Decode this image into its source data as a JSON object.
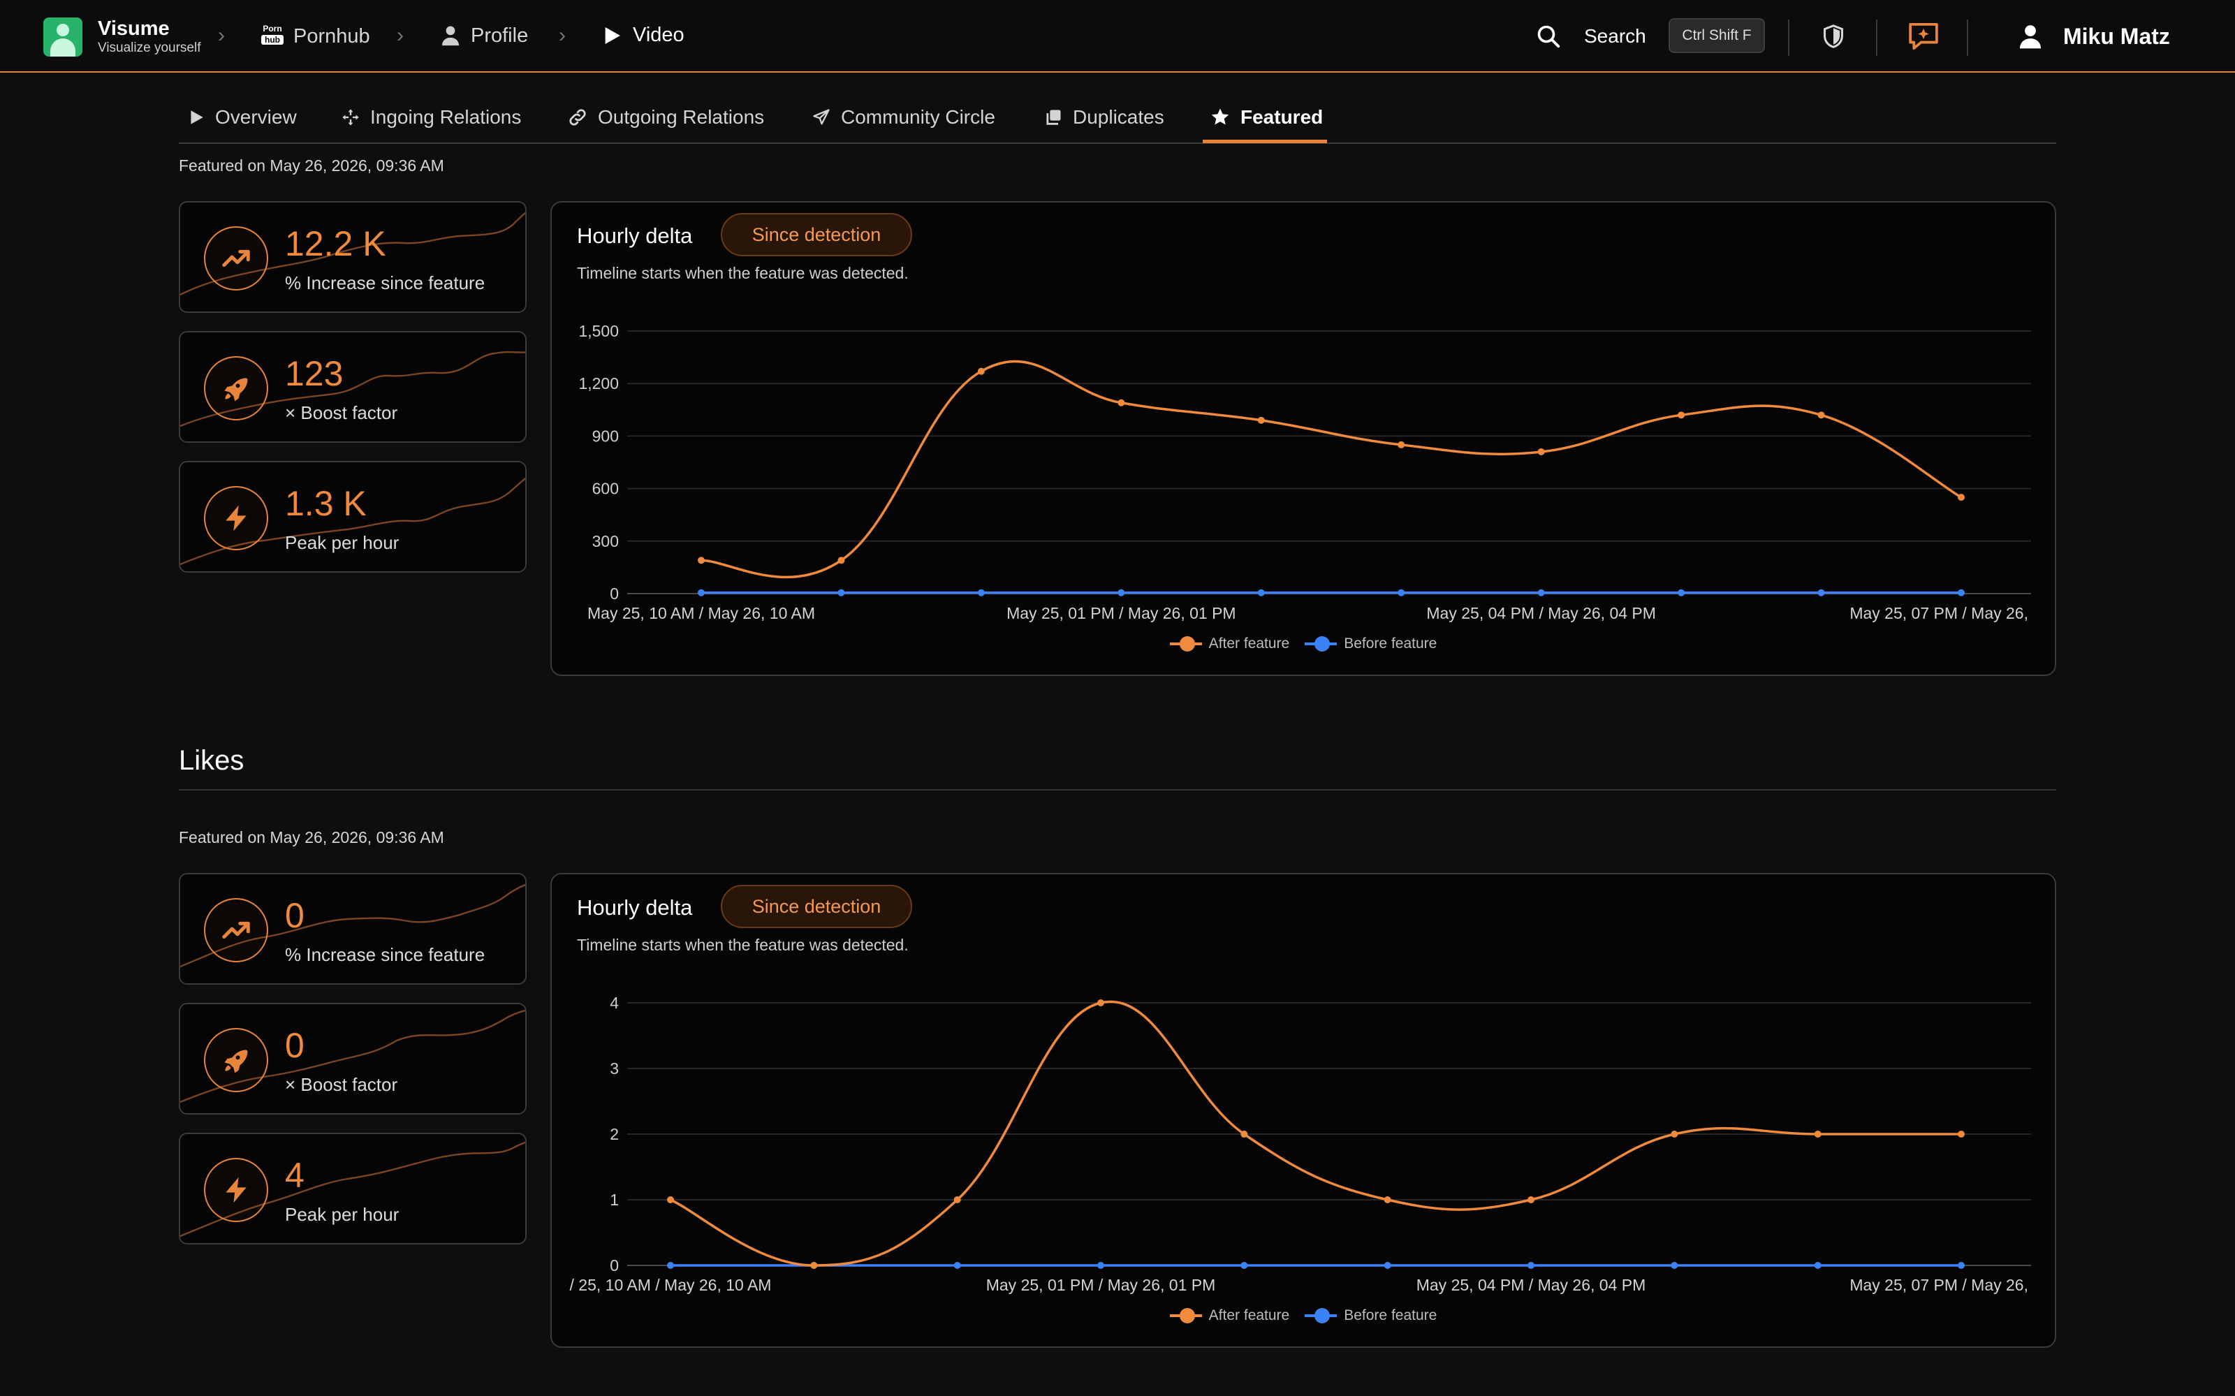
{
  "brand": {
    "name": "Visume",
    "tagline": "Visualize yourself"
  },
  "breadcrumb": [
    {
      "label": "Pornhub",
      "icon": "pornhub-logo-icon"
    },
    {
      "label": "Profile",
      "icon": "person-icon"
    },
    {
      "label": "Video",
      "icon": "play-icon"
    }
  ],
  "header": {
    "search_label": "Search",
    "shortcut": "Ctrl Shift F",
    "user_name": "Miku Matz"
  },
  "tabs": [
    {
      "label": "Overview",
      "icon": "play-icon"
    },
    {
      "label": "Ingoing Relations",
      "icon": "move-arrows-icon"
    },
    {
      "label": "Outgoing Relations",
      "icon": "link-icon"
    },
    {
      "label": "Community Circle",
      "icon": "send-icon"
    },
    {
      "label": "Duplicates",
      "icon": "copy-icon"
    },
    {
      "label": "Featured",
      "icon": "star-icon",
      "active": true
    }
  ],
  "sections": [
    {
      "title": "",
      "featured_on": "Featured on May 26, 2026, 09:36 AM",
      "stats": [
        {
          "value": "12.2 K",
          "label": "% Increase since feature",
          "icon": "trending-up-icon"
        },
        {
          "value": "123",
          "label": "× Boost factor",
          "icon": "rocket-icon"
        },
        {
          "value": "1.3 K",
          "label": "Peak per hour",
          "icon": "lightning-icon"
        }
      ],
      "chart_title": "Hourly delta",
      "chip": "Since detection",
      "subtitle": "Timeline starts when the feature was detected.",
      "legend": [
        "After feature",
        "Before feature"
      ]
    },
    {
      "title": "Likes",
      "featured_on": "Featured on May 26, 2026, 09:36 AM",
      "stats": [
        {
          "value": "0",
          "label": "% Increase since feature",
          "icon": "trending-up-icon"
        },
        {
          "value": "0",
          "label": "× Boost factor",
          "icon": "rocket-icon"
        },
        {
          "value": "4",
          "label": "Peak per hour",
          "icon": "lightning-icon"
        }
      ],
      "chart_title": "Hourly delta",
      "chip": "Since detection",
      "subtitle": "Timeline starts when the feature was detected.",
      "legend": [
        "After feature",
        "Before feature"
      ]
    }
  ],
  "colors": {
    "accent": "#e8853a",
    "after": "#f08a3c",
    "before": "#3b82f6",
    "background": "#0e0e0e"
  },
  "chart_data": [
    {
      "type": "line",
      "title": "Hourly delta",
      "x_tick_labels": [
        "May 25, 10 AM / May 26, 10 AM",
        "May 25, 01 PM / May 26, 01 PM",
        "May 25, 04 PM / May 26, 04 PM",
        "May 25, 07 PM / May 26,"
      ],
      "x_tick_indices": [
        0,
        3,
        6,
        9
      ],
      "ylim": [
        0,
        1500
      ],
      "y_ticks": [
        0,
        300,
        600,
        900,
        1200,
        1500
      ],
      "y_tick_labels": [
        "0",
        "300",
        "600",
        "900",
        "1,200",
        "1,500"
      ],
      "grid": true,
      "legend_position": "bottom",
      "series": [
        {
          "name": "After feature",
          "color": "#f08a3c",
          "values": [
            190,
            190,
            1270,
            1090,
            990,
            850,
            810,
            1020,
            1020,
            550
          ]
        },
        {
          "name": "Before feature",
          "color": "#3b82f6",
          "values": [
            5,
            5,
            5,
            5,
            5,
            5,
            5,
            5,
            5,
            5
          ]
        }
      ]
    },
    {
      "type": "line",
      "title": "Hourly delta",
      "x_tick_labels": [
        "/ 25, 10 AM / May 26, 10 AM",
        "May 25, 01 PM / May 26, 01 PM",
        "May 25, 04 PM / May 26, 04 PM",
        "May 25, 07 PM / May 26,"
      ],
      "x_tick_indices": [
        0,
        3,
        6,
        9
      ],
      "ylim": [
        0,
        4
      ],
      "y_ticks": [
        0,
        1,
        2,
        3,
        4
      ],
      "y_tick_labels": [
        "0",
        "1",
        "2",
        "3",
        "4"
      ],
      "grid": true,
      "legend_position": "bottom",
      "series": [
        {
          "name": "After feature",
          "color": "#f08a3c",
          "values": [
            1,
            0,
            1,
            4,
            2,
            1,
            1,
            2,
            2,
            2
          ]
        },
        {
          "name": "Before feature",
          "color": "#3b82f6",
          "values": [
            0,
            0,
            0,
            0,
            0,
            0,
            0,
            0,
            0,
            0
          ]
        }
      ]
    }
  ]
}
